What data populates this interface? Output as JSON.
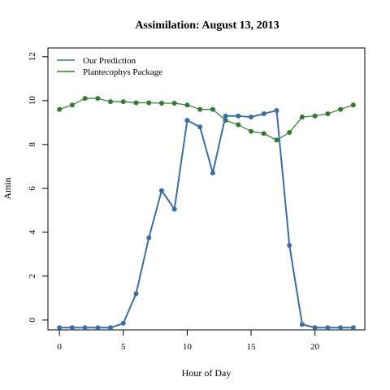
{
  "chart_data": {
    "type": "line",
    "title": "Assimilation: August 13, 2013",
    "xlabel": "Hour of Day",
    "ylabel": "Amin",
    "xlim": [
      -0.9,
      23.9
    ],
    "ylim": [
      -0.45,
      12.4
    ],
    "xticks": [
      0,
      5,
      10,
      15,
      20
    ],
    "yticks": [
      0,
      2,
      4,
      6,
      8,
      10,
      12
    ],
    "legend_position": "top-left",
    "grid": false,
    "x": [
      0,
      1,
      2,
      3,
      4,
      5,
      6,
      7,
      8,
      9,
      10,
      11,
      12,
      13,
      14,
      15,
      16,
      17,
      18,
      19,
      20,
      21,
      22,
      23
    ],
    "series": [
      {
        "name": "Our Prediction",
        "color": "#3b6ea5",
        "line_width": 2,
        "values": [
          -0.35,
          -0.35,
          -0.35,
          -0.35,
          -0.35,
          -0.15,
          1.2,
          3.75,
          5.9,
          5.05,
          9.1,
          8.8,
          6.7,
          9.3,
          9.3,
          9.25,
          9.4,
          9.55,
          3.4,
          -0.2,
          -0.35,
          -0.35,
          -0.35,
          -0.35
        ]
      },
      {
        "name": "Plantecophys Package",
        "color": "#2e7d2e",
        "line_width": 1.2,
        "values": [
          9.6,
          9.8,
          10.1,
          10.1,
          9.95,
          9.95,
          9.9,
          9.9,
          9.88,
          9.88,
          9.8,
          9.6,
          9.6,
          9.1,
          8.9,
          8.6,
          8.5,
          8.2,
          8.55,
          9.25,
          9.3,
          9.4,
          9.6,
          9.8
        ]
      }
    ]
  }
}
